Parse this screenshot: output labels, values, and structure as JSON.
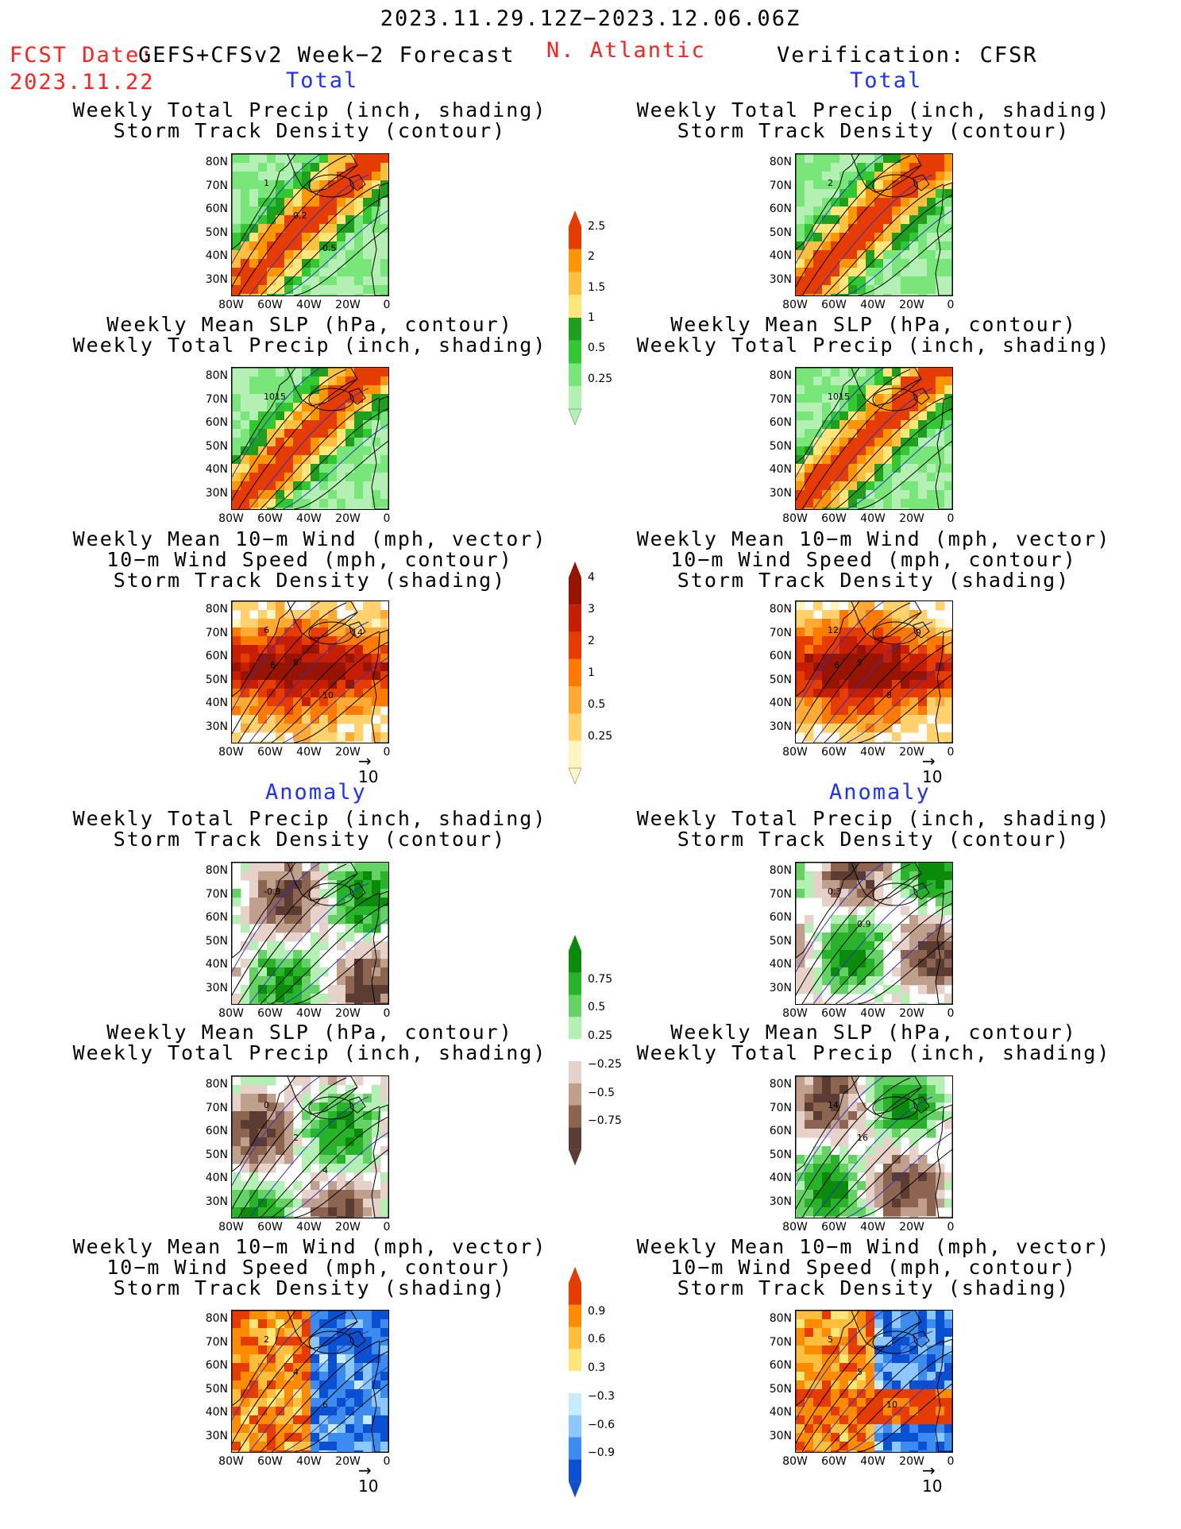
{
  "header": {
    "date_range": "2023.11.29.12Z−2023.12.06.06Z",
    "fcst_label": "FCST Date:",
    "fcst_date": "2023.11.22",
    "model": "GEFS+CFSv2 Week−2 Forecast",
    "region": "N. Atlantic",
    "verification": "Verification: CFSR"
  },
  "sections": {
    "total": "Total",
    "anomaly": "Anomaly"
  },
  "panel_titles": {
    "precip_storm": [
      "Weekly Total Precip (inch, shading)",
      "Storm Track Density (contour)"
    ],
    "slp_precip": [
      "Weekly Mean SLP (hPa, contour)",
      "Weekly Total Precip (inch, shading)"
    ],
    "wind_storm": [
      "Weekly Mean 10−m Wind (mph, vector)",
      "10−m Wind Speed (mph, contour)",
      "Storm Track Density (shading)"
    ]
  },
  "axes": {
    "lat_ticks": [
      "80N",
      "70N",
      "60N",
      "50N",
      "40N",
      "30N"
    ],
    "lon_ticks": [
      "80W",
      "60W",
      "40W",
      "20W",
      "0"
    ]
  },
  "vector_ref": "10",
  "colors": {
    "precip": [
      "#b4f0b4",
      "#78e678",
      "#32c832",
      "#1ea01e",
      "#ffe678",
      "#ffc040",
      "#ff9600",
      "#e63c00"
    ],
    "storm": [
      "#fff5c0",
      "#ffd26e",
      "#ffaa32",
      "#ff7a00",
      "#e63c00",
      "#c81e00",
      "#961400"
    ],
    "anom_precip": [
      "#5a3c32",
      "#8c6450",
      "#bea08c",
      "#e6d2c8",
      "#ffffff",
      "#b4f0b4",
      "#64d264",
      "#28b428",
      "#0a8c0a"
    ],
    "anom_storm": [
      "#0a50d2",
      "#3c8cf0",
      "#8cc8ff",
      "#c8ecff",
      "#ffffff",
      "#ffe678",
      "#ffbe3c",
      "#ff8c00",
      "#e63c00"
    ]
  },
  "chart_data": [
    {
      "type": "heatmap",
      "column": "GEFS+CFSv2 Week−2 Forecast",
      "section": "Total",
      "title": "Weekly Total Precip (inch, shading) / Storm Track Density (contour)",
      "colorbar_ticks": [
        "0.25",
        "0.5",
        "1",
        "1.5",
        "2",
        "2.5"
      ],
      "contour_labels": [
        "1",
        "0.2",
        "0.5"
      ]
    },
    {
      "type": "heatmap",
      "column": "GEFS+CFSv2 Week−2 Forecast",
      "section": "Total",
      "title": "Weekly Mean SLP (hPa, contour) / Weekly Total Precip (inch, shading)",
      "colorbar_ticks": [
        "0.25",
        "0.5",
        "1",
        "1.5",
        "2",
        "2.5"
      ],
      "contour_labels": [
        "1015"
      ]
    },
    {
      "type": "heatmap",
      "column": "GEFS+CFSv2 Week−2 Forecast",
      "section": "Total",
      "title": "Weekly Mean 10−m Wind (mph, vector) / 10−m Wind Speed (mph, contour) / Storm Track Density (shading)",
      "colorbar_ticks": [
        "0.25",
        "0.5",
        "1",
        "2",
        "3",
        "4"
      ],
      "contour_labels": [
        "6",
        "8",
        "10",
        "14",
        "6"
      ]
    },
    {
      "type": "heatmap",
      "column": "Verification: CFSR",
      "section": "Total",
      "title": "Weekly Total Precip (inch, shading) / Storm Track Density (contour)",
      "colorbar_ticks": [
        "0.25",
        "0.5",
        "1",
        "1.5",
        "2",
        "2.5"
      ],
      "contour_labels": [
        "2"
      ]
    },
    {
      "type": "heatmap",
      "column": "Verification: CFSR",
      "section": "Total",
      "title": "Weekly Mean SLP (hPa, contour) / Weekly Total Precip (inch, shading)",
      "colorbar_ticks": [
        "0.25",
        "0.5",
        "1",
        "1.5",
        "2",
        "2.5"
      ],
      "contour_labels": [
        "1015"
      ]
    },
    {
      "type": "heatmap",
      "column": "Verification: CFSR",
      "section": "Total",
      "title": "Weekly Mean 10−m Wind (mph, vector) / 10−m Wind Speed (mph, contour) / Storm Track Density (shading)",
      "colorbar_ticks": [
        "0.25",
        "0.5",
        "1",
        "2",
        "3",
        "4"
      ],
      "contour_labels": [
        "12",
        "5",
        "8",
        "9",
        "6"
      ]
    },
    {
      "type": "heatmap",
      "column": "GEFS+CFSv2 Week−2 Forecast",
      "section": "Anomaly",
      "title": "Weekly Total Precip (inch, shading) / Storm Track Density (contour)",
      "colorbar_ticks": [
        "−0.75",
        "−0.5",
        "−0.25",
        "0.25",
        "0.5",
        "0.75"
      ],
      "contour_labels": [
        "-0.3"
      ]
    },
    {
      "type": "heatmap",
      "column": "GEFS+CFSv2 Week−2 Forecast",
      "section": "Anomaly",
      "title": "Weekly Mean SLP (hPa, contour) / Weekly Total Precip (inch, shading)",
      "colorbar_ticks": [
        "−0.75",
        "−0.5",
        "−0.25",
        "0.25",
        "0.5",
        "0.75"
      ],
      "contour_labels": [
        "0",
        "2",
        "4"
      ]
    },
    {
      "type": "heatmap",
      "column": "GEFS+CFSv2 Week−2 Forecast",
      "section": "Anomaly",
      "title": "Weekly Mean 10−m Wind (mph, vector) / 10−m Wind Speed (mph, contour) / Storm Track Density (shading)",
      "colorbar_ticks": [
        "−0.9",
        "−0.6",
        "−0.3",
        "0.3",
        "0.6",
        "0.9"
      ],
      "contour_labels": [
        "2",
        "4",
        "6"
      ]
    },
    {
      "type": "heatmap",
      "column": "Verification: CFSR",
      "section": "Anomaly",
      "title": "Weekly Total Precip (inch, shading) / Storm Track Density (contour)",
      "colorbar_ticks": [
        "−0.75",
        "−0.5",
        "−0.25",
        "0.25",
        "0.5",
        "0.75"
      ],
      "contour_labels": [
        "0.3",
        "0.9"
      ]
    },
    {
      "type": "heatmap",
      "column": "Verification: CFSR",
      "section": "Anomaly",
      "title": "Weekly Mean SLP (hPa, contour) / Weekly Total Precip (inch, shading)",
      "colorbar_ticks": [
        "−0.75",
        "−0.5",
        "−0.25",
        "0.25",
        "0.5",
        "0.75"
      ],
      "contour_labels": [
        "14",
        "16"
      ]
    },
    {
      "type": "heatmap",
      "column": "Verification: CFSR",
      "section": "Anomaly",
      "title": "Weekly Mean 10−m Wind (mph, vector) / 10−m Wind Speed (mph, contour) / Storm Track Density (shading)",
      "colorbar_ticks": [
        "−0.9",
        "−0.6",
        "−0.3",
        "0.3",
        "0.6",
        "0.9"
      ],
      "contour_labels": [
        "5",
        "5",
        "10"
      ]
    }
  ]
}
